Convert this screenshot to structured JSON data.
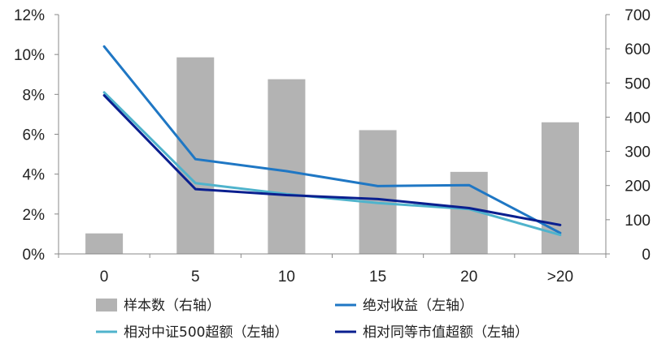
{
  "chart_data": {
    "type": "bar+line",
    "categories": [
      "0",
      "5",
      "10",
      "15",
      "20",
      ">20"
    ],
    "bar_series": {
      "name": "样本数（右轴）",
      "axis": "right",
      "values": [
        60,
        575,
        511,
        362,
        240,
        385
      ],
      "color": "#b3b3b3"
    },
    "line_series": [
      {
        "name": "绝对收益（左轴）",
        "axis": "left",
        "values": [
          10.4,
          4.75,
          4.15,
          3.4,
          3.45,
          1.05
        ],
        "color": "#1f77c4"
      },
      {
        "name": "相对中证500超额（左轴）",
        "axis": "left",
        "values": [
          8.1,
          3.55,
          3.0,
          2.55,
          2.25,
          0.95
        ],
        "color": "#4fb3cc"
      },
      {
        "name": "相对同等市值超额（左轴）",
        "axis": "left",
        "values": [
          7.95,
          3.25,
          2.95,
          2.75,
          2.3,
          1.45
        ],
        "color": "#0a1f8f"
      }
    ],
    "left_axis": {
      "min": 0,
      "max": 12,
      "step": 2,
      "ticks": [
        "0%",
        "2%",
        "4%",
        "6%",
        "8%",
        "10%",
        "12%"
      ]
    },
    "right_axis": {
      "min": 0,
      "max": 700,
      "step": 100,
      "ticks": [
        "0",
        "100",
        "200",
        "300",
        "400",
        "500",
        "600",
        "700"
      ]
    },
    "grid": false,
    "legend_position": "bottom"
  }
}
